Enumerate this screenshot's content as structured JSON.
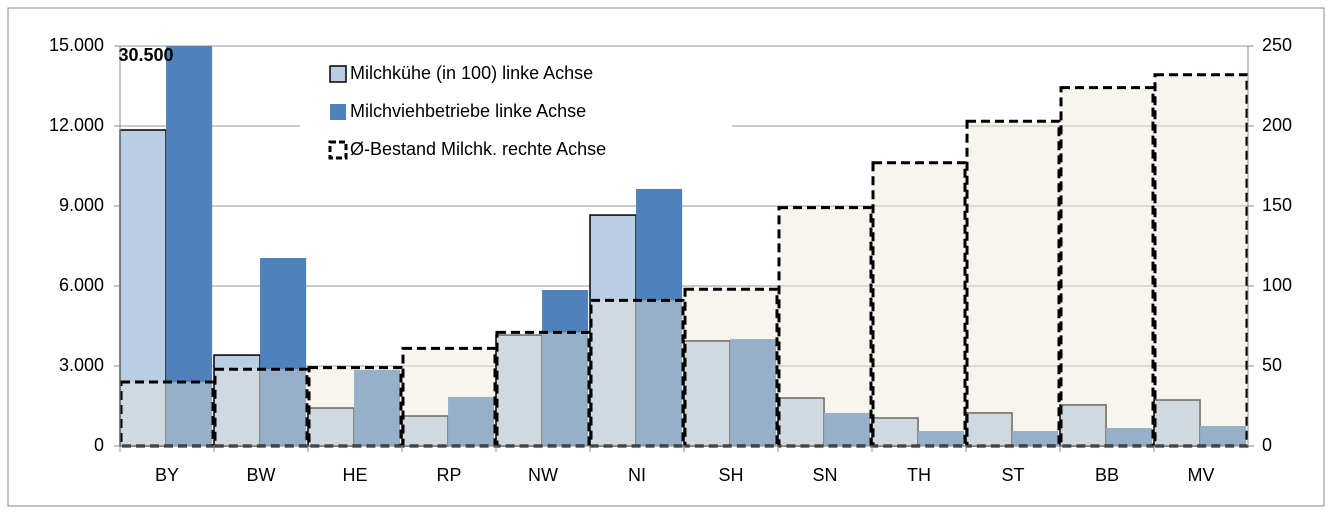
{
  "chart_data": {
    "type": "bar",
    "categories": [
      "BY",
      "BW",
      "HE",
      "RP",
      "NW",
      "NI",
      "SH",
      "SN",
      "TH",
      "ST",
      "BB",
      "MV"
    ],
    "series": [
      {
        "name": "Milchkühe (in 100) linke Achse",
        "color": "#b9cde5",
        "values": [
          11850,
          3410,
          1425,
          1125,
          4160,
          8660,
          3940,
          1800,
          1050,
          1240,
          1540,
          1725
        ]
      },
      {
        "name": "Milchviehbetriebe linke Achse",
        "color": "#4f81bd",
        "values": [
          30500,
          7050,
          2850,
          1840,
          5850,
          9640,
          4010,
          1240,
          560,
          560,
          675,
          750
        ],
        "value_labels": [
          "30.500",
          null,
          null,
          null,
          null,
          null,
          null,
          null,
          null,
          null,
          null,
          null
        ]
      },
      {
        "name": "Ø-Bestand Milchk. rechte Achse",
        "color": "#000000",
        "axis": "y2",
        "values": [
          40,
          48,
          49,
          61,
          71,
          91,
          98,
          149,
          177,
          203,
          224,
          232
        ]
      }
    ],
    "ylim": [
      0,
      15000
    ],
    "yticks": [
      0,
      {
        "value": 3000,
        "label": "3.000"
      },
      {
        "value": 6000,
        "label": "6.000"
      },
      {
        "value": 9000,
        "label": "9.000"
      },
      {
        "value": 12000,
        "label": "12.000"
      },
      {
        "value": 15000,
        "label": "15.000"
      }
    ],
    "y2lim": [
      0,
      250
    ],
    "y2ticks": [
      0,
      50,
      100,
      150,
      200,
      250
    ],
    "grid": true,
    "legend": "top"
  }
}
